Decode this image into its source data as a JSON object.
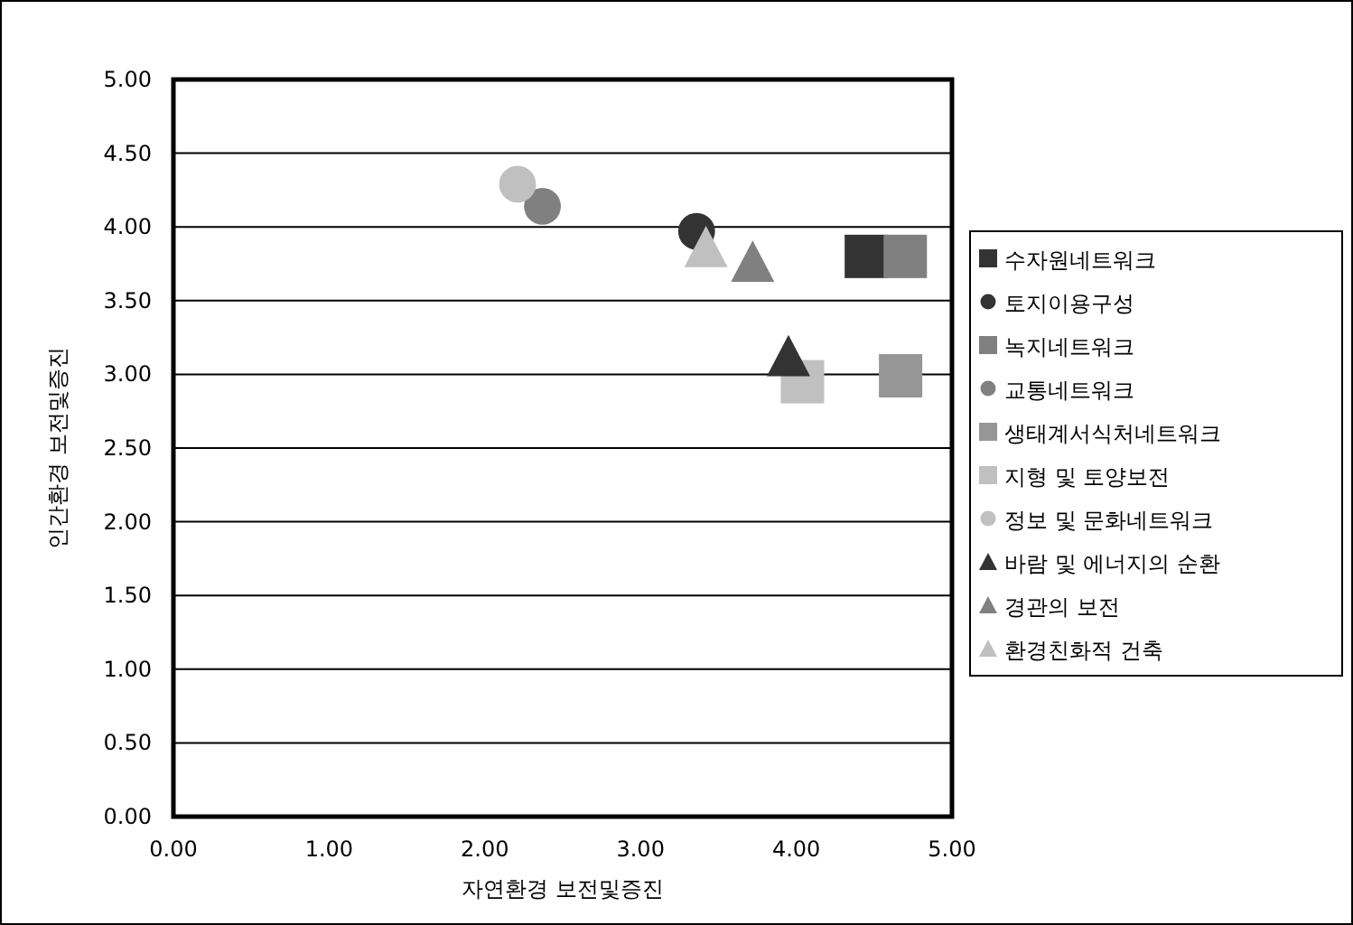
{
  "chart_data": {
    "type": "scatter",
    "xlabel": "자연환경 보전및증진",
    "ylabel": "인간환경 보전및증진",
    "xlim": [
      0,
      5
    ],
    "ylim": [
      0,
      5
    ],
    "xticks": [
      {
        "value": 0,
        "label": "0.00"
      },
      {
        "value": 1,
        "label": "1.00"
      },
      {
        "value": 2,
        "label": "2.00"
      },
      {
        "value": 3,
        "label": "3.00"
      },
      {
        "value": 4,
        "label": "4.00"
      },
      {
        "value": 5,
        "label": "5.00"
      }
    ],
    "yticks": [
      {
        "value": 0,
        "label": "0.00"
      },
      {
        "value": 0.5,
        "label": "0.50"
      },
      {
        "value": 1,
        "label": "1.00"
      },
      {
        "value": 1.5,
        "label": "1.50"
      },
      {
        "value": 2,
        "label": "2.00"
      },
      {
        "value": 2.5,
        "label": "2.50"
      },
      {
        "value": 3,
        "label": "3.00"
      },
      {
        "value": 3.5,
        "label": "3.50"
      },
      {
        "value": 4,
        "label": "4.00"
      },
      {
        "value": 4.5,
        "label": "4.50"
      },
      {
        "value": 5,
        "label": "5.00"
      }
    ],
    "grid": "y",
    "legend": "right",
    "series": [
      {
        "name": "수자원네트워크",
        "color": "#333333",
        "marker": "square",
        "x": [
          4.45
        ],
        "values": [
          3.8
        ]
      },
      {
        "name": "토지이용구성",
        "color": "#333333",
        "marker": "circle",
        "x": [
          3.36
        ],
        "values": [
          3.97
        ]
      },
      {
        "name": "녹지네트워크",
        "color": "#808080",
        "marker": "square",
        "x": [
          4.7
        ],
        "values": [
          3.8
        ]
      },
      {
        "name": "교통네트워크",
        "color": "#808080",
        "marker": "circle",
        "x": [
          2.37
        ],
        "values": [
          4.14
        ]
      },
      {
        "name": "생태계서식처네트워크",
        "color": "#969696",
        "marker": "square",
        "x": [
          4.67
        ],
        "values": [
          2.99
        ]
      },
      {
        "name": "지형 및 토양보전",
        "color": "#c0c0c0",
        "marker": "square",
        "x": [
          4.04
        ],
        "values": [
          2.95
        ]
      },
      {
        "name": "정보 및 문화네트워크",
        "color": "#c0c0c0",
        "marker": "circle",
        "x": [
          2.21
        ],
        "values": [
          4.29
        ]
      },
      {
        "name": "바람 및 에너지의 순환",
        "color": "#333333",
        "marker": "triangle",
        "x": [
          3.95
        ],
        "values": [
          3.12
        ]
      },
      {
        "name": "경관의 보전",
        "color": "#808080",
        "marker": "triangle",
        "x": [
          3.72
        ],
        "values": [
          3.76
        ]
      },
      {
        "name": "환경친화적 건축",
        "color": "#c0c0c0",
        "marker": "triangle",
        "x": [
          3.42
        ],
        "values": [
          3.86
        ]
      }
    ]
  }
}
